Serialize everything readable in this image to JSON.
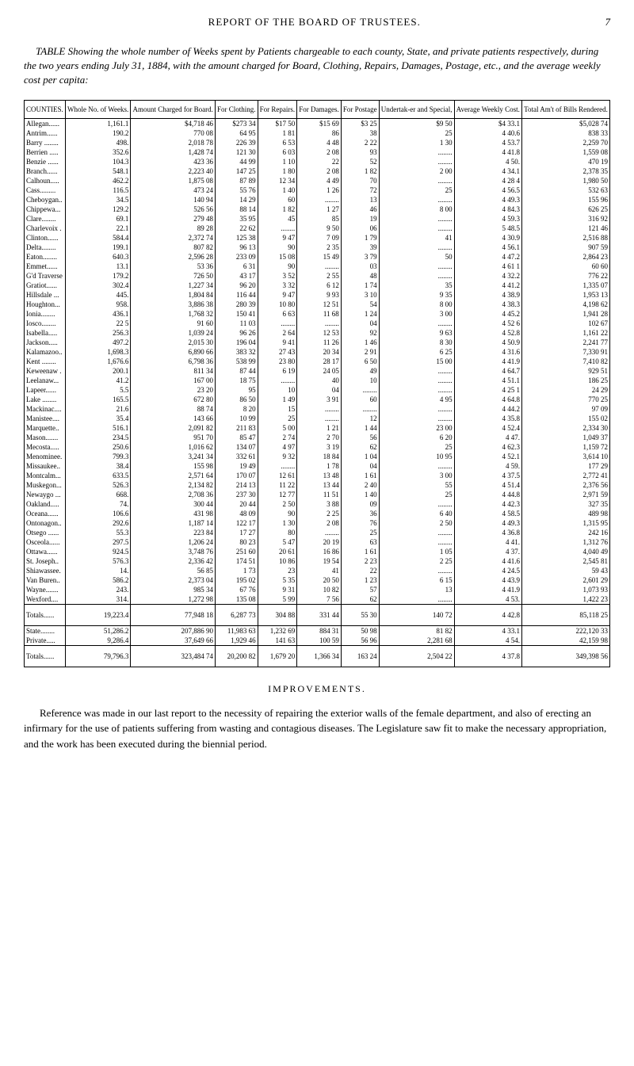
{
  "page": {
    "header_title": "REPORT OF THE BOARD OF TRUSTEES.",
    "page_number": "7"
  },
  "intro": "TABLE Showing the whole number of Weeks spent by Patients chargeable to each county, State, and private patients respectively, during the two years ending July 31, 1884, with the amount charged for Board, Clothing, Repairs, Damages, Postage, etc., and the average weekly cost per capita:",
  "table": {
    "columns": [
      "COUNTIES.",
      "Whole No. of Weeks.",
      "Amount Charged for Board.",
      "For Clothing.",
      "For Repairs.",
      "For Damages.",
      "For Postage",
      "Undertak-er and Special,",
      "Average Weekly Cost.",
      "Total Am't of Bills Rendered."
    ],
    "rows": [
      [
        "Allegan......",
        "1,161.1",
        "$4,718 46",
        "$273 34",
        "$17 50",
        "$15 69",
        "$3 25",
        "$9 50",
        "$4 33.1",
        "$5,028 74"
      ],
      [
        "Antrim......",
        "190.2",
        "770 08",
        "64 95",
        "1 81",
        "86",
        "38",
        "25",
        "4 40.6",
        "838 33"
      ],
      [
        "Barry ........",
        "498.",
        "2,018 78",
        "226 39",
        "6 53",
        "4 48",
        "2 22",
        "1 30",
        "4 53.7",
        "2,259 70"
      ],
      [
        "Berrien .....",
        "352.6",
        "1,428 74",
        "121 30",
        "6 03",
        "2 08",
        "93",
        "........",
        "4 41.8",
        "1,559 08"
      ],
      [
        "Benzie ......",
        "104.3",
        "423 36",
        "44 99",
        "1 10",
        "22",
        "52",
        "........",
        "4 50.",
        "470 19"
      ],
      [
        "Branch......",
        "548.1",
        "2,223 40",
        "147 25",
        "1 80",
        "2 08",
        "1 82",
        "2 00",
        "4 34.1",
        "2,378 35"
      ],
      [
        "Calhoun.....",
        "462.2",
        "1,875 08",
        "87 89",
        "12 34",
        "4 49",
        "70",
        "........",
        "4 28 4",
        "1,980 50"
      ],
      [
        "Cass.........",
        "116.5",
        "473 24",
        "55 76",
        "1 40",
        "1 26",
        "72",
        "25",
        "4 56.5",
        "532 63"
      ],
      [
        "Cheboygan..",
        "34.5",
        "140 94",
        "14 29",
        "60",
        "........",
        "13",
        "........",
        "4 49.3",
        "155 96"
      ],
      [
        "Chippewa...",
        "129.2",
        "526 56",
        "88 14",
        "1 82",
        "1 27",
        "46",
        "8 00",
        "4 84.3",
        "626 25"
      ],
      [
        "Clare........",
        "69.1",
        "279 48",
        "35 95",
        "45",
        "85",
        "19",
        "........",
        "4 59.3",
        "316 92"
      ],
      [
        "Charlevoix .",
        "22.1",
        "89 28",
        "22 62",
        "........",
        "9 50",
        "06",
        "........",
        "5 48.5",
        "121 46"
      ],
      [
        "Clinton......",
        "584.4",
        "2,372 74",
        "125 38",
        "9 47",
        "7 09",
        "1 79",
        "41",
        "4 30.9",
        "2,516 88"
      ],
      [
        "Delta........",
        "199.1",
        "807 82",
        "96 13",
        "90",
        "2 35",
        "39",
        "........",
        "4 56.1",
        "907 59"
      ],
      [
        "Eaton........",
        "640.3",
        "2,596 28",
        "233 09",
        "15 08",
        "15 49",
        "3 79",
        "50",
        "4 47.2",
        "2,864 23"
      ],
      [
        "Emmet......",
        "13.1",
        "53 36",
        "6 31",
        "90",
        "........",
        "03",
        "........",
        "4 61 1",
        "60 60"
      ],
      [
        "G'd Traverse",
        "179.2",
        "726 50",
        "43 17",
        "3 52",
        "2 55",
        "48",
        "........",
        "4 32.2",
        "776 22"
      ],
      [
        "Gratiot......",
        "302.4",
        "1,227 34",
        "96 20",
        "3 32",
        "6 12",
        "1 74",
        "35",
        "4 41.2",
        "1,335 07"
      ],
      [
        "Hillsdale ...",
        "445.",
        "1,804 84",
        "116 44",
        "9 47",
        "9 93",
        "3 10",
        "9 35",
        "4 38.9",
        "1,953 13"
      ],
      [
        "Houghton...",
        "958.",
        "3,886 38",
        "280 39",
        "10 80",
        "12 51",
        "54",
        "8 00",
        "4 38.3",
        "4,198 62"
      ],
      [
        "Ionia........",
        "436.1",
        "1,768 32",
        "150 41",
        "6 63",
        "11 68",
        "1 24",
        "3 00",
        "4 45.2",
        "1,941 28"
      ],
      [
        "Iosco........",
        "22 5",
        "91 60",
        "11 03",
        "........",
        "........",
        "04",
        "........",
        "4 52 6",
        "102 67"
      ],
      [
        "Isabella.....",
        "256.3",
        "1,039 24",
        "96 26",
        "2 64",
        "12 53",
        "92",
        "9 63",
        "4 52.8",
        "1,161 22"
      ],
      [
        "Jackson.....",
        "497.2",
        "2,015 30",
        "196 04",
        "9 41",
        "11 26",
        "1 46",
        "8 30",
        "4 50.9",
        "2,241 77"
      ],
      [
        "Kalamazoo..",
        "1,698.3",
        "6,890 66",
        "383 32",
        "27 43",
        "20 34",
        "2 91",
        "6 25",
        "4 31.6",
        "7,330 91"
      ],
      [
        "Kent ........",
        "1,676.6",
        "6,798 36",
        "538 99",
        "23 80",
        "28 17",
        "6 50",
        "15 00",
        "4 41.9",
        "7,410 82"
      ],
      [
        "Keweenaw .",
        "200.1",
        "811 34",
        "87 44",
        "6 19",
        "24 05",
        "49",
        "........",
        "4 64.7",
        "929 51"
      ],
      [
        "Leelanaw...",
        "41.2",
        "167 00",
        "18 75",
        "........",
        "40",
        "10",
        "........",
        "4 51.1",
        "186 25"
      ],
      [
        "Lapeer......",
        "5.5",
        "23 20",
        "95",
        "10",
        "04",
        "........",
        "........",
        "4 25 1",
        "24 29"
      ],
      [
        "Lake ........",
        "165.5",
        "672 80",
        "86 50",
        "1 49",
        "3 91",
        "60",
        "4 95",
        "4 64.8",
        "770 25"
      ],
      [
        "Mackinac....",
        "21.6",
        "88 74",
        "8 20",
        "15",
        "........",
        "........",
        "........",
        "4 44.2",
        "97 09"
      ],
      [
        "Manistee....",
        "35.4",
        "143 66",
        "10 99",
        "25",
        "........",
        "12",
        "........",
        "4 35.8",
        "155 02"
      ],
      [
        "Marquette..",
        "516.1",
        "2,091 82",
        "211 83",
        "5 00",
        "1 21",
        "1 44",
        "23 00",
        "4 52.4",
        "2,334 30"
      ],
      [
        "Mason.......",
        "234.5",
        "951 70",
        "85 47",
        "2 74",
        "2 70",
        "56",
        "6 20",
        "4 47.",
        "1,049 37"
      ],
      [
        "Mecosta.....",
        "250.6",
        "1,016 62",
        "134 07",
        "4 97",
        "3 19",
        "62",
        "25",
        "4 62.3",
        "1,159 72"
      ],
      [
        "Menominee.",
        "799.3",
        "3,241 34",
        "332 61",
        "9 32",
        "18 84",
        "1 04",
        "10 95",
        "4 52.1",
        "3,614 10"
      ],
      [
        "Missaukee..",
        "38.4",
        "155 98",
        "19 49",
        "........",
        "1 78",
        "04",
        "........",
        "4 59.",
        "177 29"
      ],
      [
        "Montcalm...",
        "633.5",
        "2,571 64",
        "170 07",
        "12 61",
        "13 48",
        "1 61",
        "3 00",
        "4 37.5",
        "2,772 41"
      ],
      [
        "Muskegon...",
        "526.3",
        "2,134 82",
        "214 13",
        "11 22",
        "13 44",
        "2 40",
        "55",
        "4 51.4",
        "2,376 56"
      ],
      [
        "Newaygo ...",
        "668.",
        "2,708 36",
        "237 30",
        "12 77",
        "11 51",
        "1 40",
        "25",
        "4 44.8",
        "2,971 59"
      ],
      [
        "Oakland.....",
        "74.",
        "300 44",
        "20 44",
        "2 50",
        "3 88",
        "09",
        "........",
        "4 42.3",
        "327 35"
      ],
      [
        "Oceana......",
        "106.6",
        "431 98",
        "48 09",
        "90",
        "2 25",
        "36",
        "6 40",
        "4 58.5",
        "489 98"
      ],
      [
        "Ontonagon..",
        "292.6",
        "1,187 14",
        "122 17",
        "1 30",
        "2 08",
        "76",
        "2 50",
        "4 49.3",
        "1,315 95"
      ],
      [
        "Otsego ......",
        "55.3",
        "223 84",
        "17 27",
        "80",
        "........",
        "25",
        "........",
        "4 36.8",
        "242 16"
      ],
      [
        "Osceola......",
        "297.5",
        "1,206 24",
        "80 23",
        "5 47",
        "20 19",
        "63",
        "........",
        "4 41.",
        "1,312 76"
      ],
      [
        "Ottawa......",
        "924.5",
        "3,748 76",
        "251 60",
        "20 61",
        "16 86",
        "1 61",
        "1 05",
        "4 37.",
        "4,040 49"
      ],
      [
        "St. Joseph..",
        "576.3",
        "2,336 42",
        "174 51",
        "10 86",
        "19 54",
        "2 23",
        "2 25",
        "4 41.6",
        "2,545 81"
      ],
      [
        "Shiawassee.",
        "14.",
        "56 85",
        "1 73",
        "23",
        "41",
        "22",
        "........",
        "4 24.5",
        "59 43"
      ],
      [
        "Van Buren..",
        "586.2",
        "2,373 04",
        "195 02",
        "5 35",
        "20 50",
        "1 23",
        "6 15",
        "4 43.9",
        "2,601 29"
      ],
      [
        "Wayne.......",
        "243.",
        "985 34",
        "67 76",
        "9 31",
        "10 82",
        "57",
        "13",
        "4 41.9",
        "1,073 93"
      ],
      [
        "Wexford....",
        "314.",
        "1,272 98",
        "135 08",
        "5 99",
        "7 56",
        "62",
        "........",
        "4 53.",
        "1,422 23"
      ]
    ],
    "totals_row": [
      "Totals......",
      "19,223.4",
      "77,948 18",
      "6,287 73",
      "304 88",
      "331 44",
      "55 30",
      "140 72",
      "4 42.8",
      "85,118 25"
    ],
    "state_row": [
      "State........",
      "51,286.2",
      "207,886 90",
      "11,983 63",
      "1,232 69",
      "884 31",
      "50 98",
      "81 82",
      "4 33.1",
      "222,120 33"
    ],
    "private_row": [
      "Private.....",
      "9,286.4",
      "37,649 66",
      "1,929 46",
      "141 63",
      "100 59",
      "56 96",
      "2,281 68",
      "4 54.",
      "42,159 98"
    ],
    "grand_row": [
      "Totals......",
      "79,796.3",
      "323,484 74",
      "20,200 82",
      "1,679 20",
      "1,366 34",
      "163 24",
      "2,504 22",
      "4 37.8",
      "349,398 56"
    ]
  },
  "improvements": {
    "heading": "IMPROVEMENTS.",
    "text": "Reference was made in our last report to the necessity of repairing the exterior walls of the female department, and also of erecting an infirmary for the use of patients suffering from wasting and contagious diseases. The Legislature saw fit to make the necessary appropriation, and the work has been executed during the biennial period."
  }
}
